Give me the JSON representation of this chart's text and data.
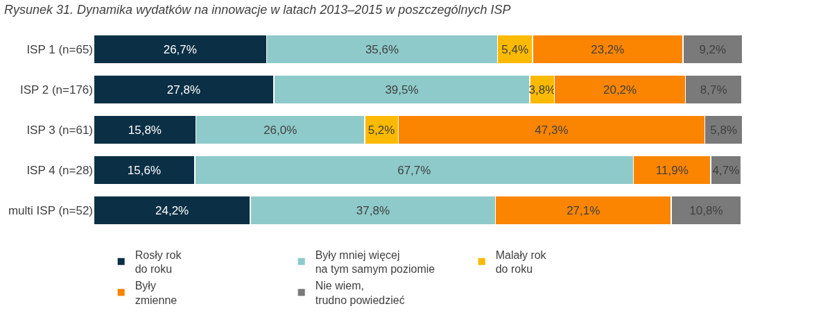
{
  "chart_data": {
    "type": "bar",
    "orientation": "horizontal",
    "stacked": true,
    "title": "Rysunek 31. Dynamika wydatków na innowacje w latach 2013–2015 w poszczególnych ISP",
    "categories": [
      "ISP 1 (n=65)",
      "ISP 2 (n=176)",
      "ISP 3 (n=61)",
      "ISP 4 (n=28)",
      "multi ISP (n=52)"
    ],
    "series": [
      {
        "name": "Rosły rok\ndo roku",
        "color": "#0b2f45",
        "values": [
          26.7,
          27.8,
          15.8,
          15.6,
          24.2
        ],
        "value_labels": [
          "26,7%",
          "27,8%",
          "15,8%",
          "15,6%",
          "24,2%"
        ]
      },
      {
        "name": "Były mniej więcej\nna tym samym poziomie",
        "color": "#8ecaca",
        "values": [
          35.6,
          39.5,
          26.0,
          67.7,
          37.8
        ],
        "value_labels": [
          "35,6%",
          "39,5%",
          "26,0%",
          "67,7%",
          "37,8%"
        ]
      },
      {
        "name": "Malały rok\ndo roku",
        "color": "#fbb900",
        "values": [
          5.4,
          3.8,
          5.2,
          null,
          null
        ],
        "value_labels": [
          "5,4%",
          "3,8%",
          "5,2%",
          null,
          null
        ]
      },
      {
        "name": "Były\nzmienne",
        "color": "#fb8500",
        "values": [
          23.2,
          20.2,
          47.3,
          11.9,
          27.1
        ],
        "value_labels": [
          "23,2%",
          "20,2%",
          "47,3%",
          "11,9%",
          "27,1%"
        ]
      },
      {
        "name": "Nie wiem,\ntrudno powiedzieć",
        "color": "#7a7a7a",
        "values": [
          9.2,
          8.7,
          5.8,
          4.7,
          10.8
        ],
        "value_labels": [
          "9,2%",
          "8,7%",
          "5,8%",
          "4,7%",
          "10,8%"
        ]
      }
    ],
    "legend": "bottom"
  }
}
